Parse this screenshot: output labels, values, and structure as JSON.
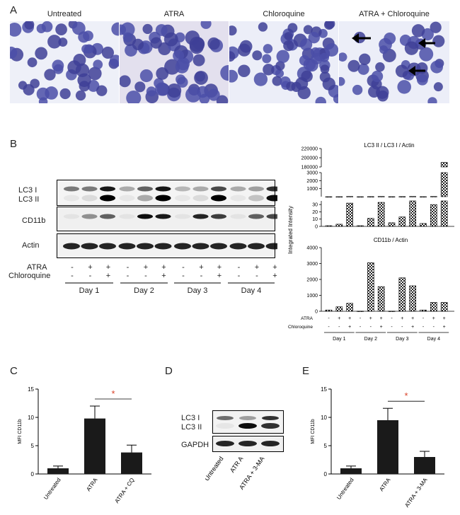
{
  "panelA": {
    "label": "A",
    "titles": [
      "Untreated",
      "ATRA",
      "Chloroquine",
      "ATRA + Chloroquine"
    ]
  },
  "panelB": {
    "label": "B",
    "row_labels": [
      "LC3 I",
      "LC3 II",
      "CD11b",
      "Actin"
    ],
    "atra_label": "ATRA",
    "chloroquine_label": "Chloroquine",
    "atra_signs": [
      "-",
      "+",
      "+",
      "-",
      "+",
      "+",
      "-",
      "+",
      "+",
      "-",
      "+",
      "+"
    ],
    "cq_signs": [
      "-",
      "-",
      "+",
      "-",
      "-",
      "+",
      "-",
      "-",
      "+",
      "-",
      "-",
      "+"
    ],
    "days": [
      "Day 1",
      "Day 2",
      "Day 3",
      "Day 4"
    ]
  },
  "chart_data": [
    {
      "type": "bar",
      "title": "LC3 II / LC3 I / Actin",
      "ylabel": "Integrated Intensity",
      "categories": [
        "D1 -/-",
        "D1 +/-",
        "D1 +/+",
        "D2 -/-",
        "D2 +/-",
        "D2 +/+",
        "D3 -/-",
        "D3 +/-",
        "D3 +/+",
        "D4 -/-",
        "D4 +/-",
        "D4 +/+"
      ],
      "values": [
        1,
        3,
        32,
        1,
        11,
        33,
        5,
        13,
        35,
        4,
        30,
        190000
      ],
      "yticks": [
        "0",
        "10",
        "20",
        "30",
        "1000",
        "2000",
        "3000",
        "180000",
        "200000",
        "220000"
      ],
      "broken_axis": true
    },
    {
      "type": "bar",
      "title": "CD11b / Actin",
      "categories": [
        "D1 -/-",
        "D1 +/-",
        "D1 +/+",
        "D2 -/-",
        "D2 +/-",
        "D2 +/+",
        "D3 -/-",
        "D3 +/-",
        "D3 +/+",
        "D4 -/-",
        "D4 +/-",
        "D4 +/+"
      ],
      "values": [
        80,
        280,
        500,
        10,
        3050,
        1550,
        10,
        2100,
        1600,
        80,
        560,
        560
      ],
      "yticks": [
        "0",
        "1000",
        "2000",
        "3000",
        "4000"
      ],
      "ylim": [
        0,
        4000
      ],
      "x_rows": [
        "ATRA",
        "Chloroquine"
      ],
      "atra_signs": [
        "-",
        "+",
        "+",
        "-",
        "+",
        "+",
        "-",
        "+",
        "+",
        "-",
        "+",
        "+"
      ],
      "cq_signs": [
        "-",
        "-",
        "+",
        "-",
        "-",
        "+",
        "-",
        "-",
        "+",
        "-",
        "-",
        "+"
      ],
      "days": [
        "Day 1",
        "Day 2",
        "Day 3",
        "Day 4"
      ]
    },
    {
      "type": "bar",
      "panel": "C",
      "ylabel": "MFI CD11b",
      "categories": [
        "Untreated",
        "ATRA",
        "ATRA + CQ"
      ],
      "values": [
        1.0,
        9.8,
        3.8
      ],
      "errors": [
        0.4,
        2.2,
        1.3
      ],
      "ylim": [
        0,
        15
      ],
      "yticks": [
        "0",
        "5",
        "10",
        "15"
      ],
      "significance": "*"
    },
    {
      "type": "bar",
      "panel": "E",
      "ylabel": "MFI CD11b",
      "categories": [
        "Untreated",
        "ATRA",
        "ATRA + 3-MA"
      ],
      "values": [
        1.0,
        9.5,
        3.0
      ],
      "errors": [
        0.4,
        2.1,
        1.0
      ],
      "ylim": [
        0,
        15
      ],
      "yticks": [
        "0",
        "5",
        "10",
        "15"
      ],
      "significance": "*"
    }
  ],
  "panelC": {
    "label": "C"
  },
  "panelD": {
    "label": "D",
    "row_labels": [
      "LC3 I",
      "LC3 II",
      "GAPDH"
    ],
    "lanes": [
      "Untreated",
      "ATR A",
      "ATRA + 3-MA"
    ]
  },
  "panelE": {
    "label": "E"
  }
}
